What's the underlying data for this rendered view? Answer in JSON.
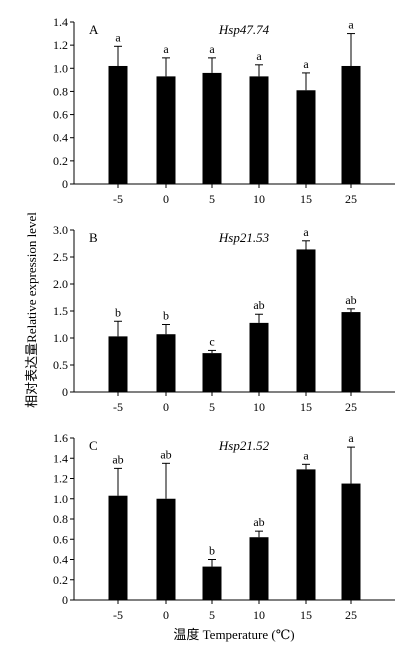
{
  "figure": {
    "ylabel": "相对表达量Relative expression level",
    "xlabel": "温度 Temperature (℃)"
  },
  "chart_data": [
    {
      "type": "bar",
      "panel": "A",
      "title": "Hsp47.74",
      "categories": [
        "-5",
        "0",
        "5",
        "10",
        "15",
        "25"
      ],
      "values": [
        1.02,
        0.93,
        0.96,
        0.93,
        0.81,
        1.02
      ],
      "errors": [
        0.17,
        0.16,
        0.13,
        0.1,
        0.15,
        0.28
      ],
      "significance": [
        "a",
        "a",
        "a",
        "a",
        "a",
        "a"
      ],
      "ylim": [
        0,
        1.4
      ],
      "yticks": [
        "0",
        "0.2",
        "0.4",
        "0.6",
        "0.8",
        "1.0",
        "1.2",
        "1.4"
      ],
      "grid": false
    },
    {
      "type": "bar",
      "panel": "B",
      "title": "Hsp21.53",
      "categories": [
        "-5",
        "0",
        "5",
        "10",
        "15",
        "25"
      ],
      "values": [
        1.03,
        1.07,
        0.72,
        1.28,
        2.64,
        1.48
      ],
      "errors": [
        0.28,
        0.18,
        0.05,
        0.16,
        0.16,
        0.06
      ],
      "significance": [
        "b",
        "b",
        "c",
        "ab",
        "a",
        "ab"
      ],
      "ylim": [
        0,
        3.0
      ],
      "yticks": [
        "0",
        "0.5",
        "1.0",
        "1.5",
        "2.0",
        "2.5",
        "3.0"
      ],
      "grid": false
    },
    {
      "type": "bar",
      "panel": "C",
      "title": "Hsp21.52",
      "categories": [
        "-5",
        "0",
        "5",
        "10",
        "15",
        "25"
      ],
      "values": [
        1.03,
        1.0,
        0.33,
        0.62,
        1.29,
        1.15
      ],
      "errors": [
        0.27,
        0.35,
        0.07,
        0.06,
        0.05,
        0.36
      ],
      "significance": [
        "ab",
        "ab",
        "b",
        "ab",
        "a",
        "a"
      ],
      "ylim": [
        0,
        1.6
      ],
      "yticks": [
        "0",
        "0.2",
        "0.4",
        "0.6",
        "0.8",
        "1.0",
        "1.2",
        "1.4",
        "1.6"
      ],
      "grid": false
    }
  ]
}
